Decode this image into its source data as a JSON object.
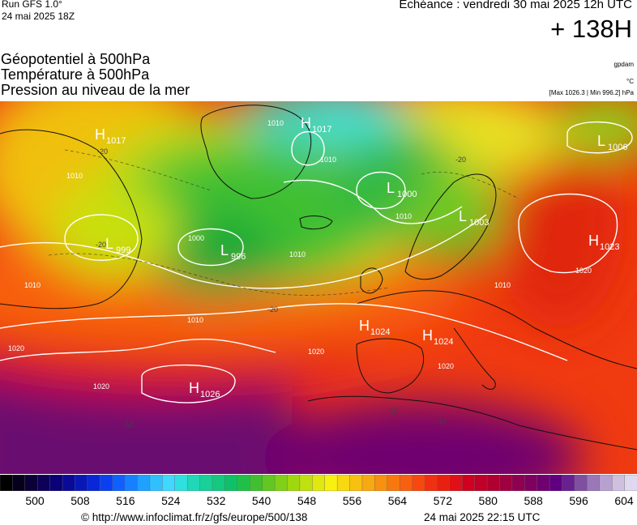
{
  "header": {
    "run_title": "Run GFS 1.0°",
    "run_date": "24 mai 2025 18Z",
    "forecast_label": "Echéance : vendredi 30 mai 2025 12h UTC",
    "forecast_hour": "+ 138H"
  },
  "layers": {
    "geopotential": "Géopotentiel à 500hPa",
    "temperature": "Température à 500hPa",
    "pressure": "Pression au niveau de la mer"
  },
  "units": {
    "geopotential": "gpdam",
    "temperature": "°C",
    "pressure_range": "[Max 1026.3 | Min 996.2] hPa"
  },
  "map": {
    "pressure_centers": [
      {
        "type": "H",
        "value": "1017"
      },
      {
        "type": "H",
        "value": "1017"
      },
      {
        "type": "L",
        "value": "1006"
      },
      {
        "type": "L",
        "value": "1000"
      },
      {
        "type": "L",
        "value": "1003"
      },
      {
        "type": "H",
        "value": "1023"
      },
      {
        "type": "L",
        "value": "999"
      },
      {
        "type": "L",
        "value": "996"
      },
      {
        "type": "H",
        "value": "1024"
      },
      {
        "type": "H",
        "value": "1024"
      },
      {
        "type": "H",
        "value": "1026"
      }
    ],
    "isobar_labels": [
      "1010",
      "1010",
      "1000",
      "1010",
      "1010",
      "1010",
      "1020",
      "1020",
      "1020",
      "1020",
      "1010",
      "1020",
      "1010",
      "1010"
    ],
    "isotherm_labels": [
      "-20",
      "-20",
      "-20",
      "-20",
      "-10",
      "-10",
      "-10"
    ],
    "colors": {
      "land_border": "#000000",
      "isobar": "#ffffff"
    }
  },
  "colorbar": {
    "ticks": [
      "500",
      "508",
      "516",
      "524",
      "532",
      "540",
      "548",
      "556",
      "564",
      "572",
      "580",
      "588",
      "596",
      "604"
    ],
    "colors": [
      "#000000",
      "#06001c",
      "#0c0038",
      "#0c0058",
      "#0a0078",
      "#0a0a98",
      "#0818b8",
      "#0828d8",
      "#0a40f0",
      "#1060ff",
      "#1880ff",
      "#20a0ff",
      "#30c0ff",
      "#40d8ff",
      "#30e0e0",
      "#20d8b8",
      "#18d098",
      "#14c880",
      "#10c068",
      "#20c048",
      "#40c030",
      "#60c820",
      "#80d018",
      "#a0d810",
      "#c0e010",
      "#e0e810",
      "#f8f010",
      "#f8d810",
      "#f8c010",
      "#f8a810",
      "#f89010",
      "#f87810",
      "#f86010",
      "#f84810",
      "#f03010",
      "#e82010",
      "#e01018",
      "#d00020",
      "#c00028",
      "#b00030",
      "#a00040",
      "#900050",
      "#800060",
      "#700070",
      "#600080",
      "#6a2090",
      "#8050a0",
      "#9a78b8",
      "#b8a0d0",
      "#d0c0e0",
      "#e0d8f0"
    ]
  },
  "footer": {
    "credit": "© http://www.infoclimat.fr/z/gfs/europe/500/138",
    "generated": "24 mai 2025 22:15 UTC"
  }
}
